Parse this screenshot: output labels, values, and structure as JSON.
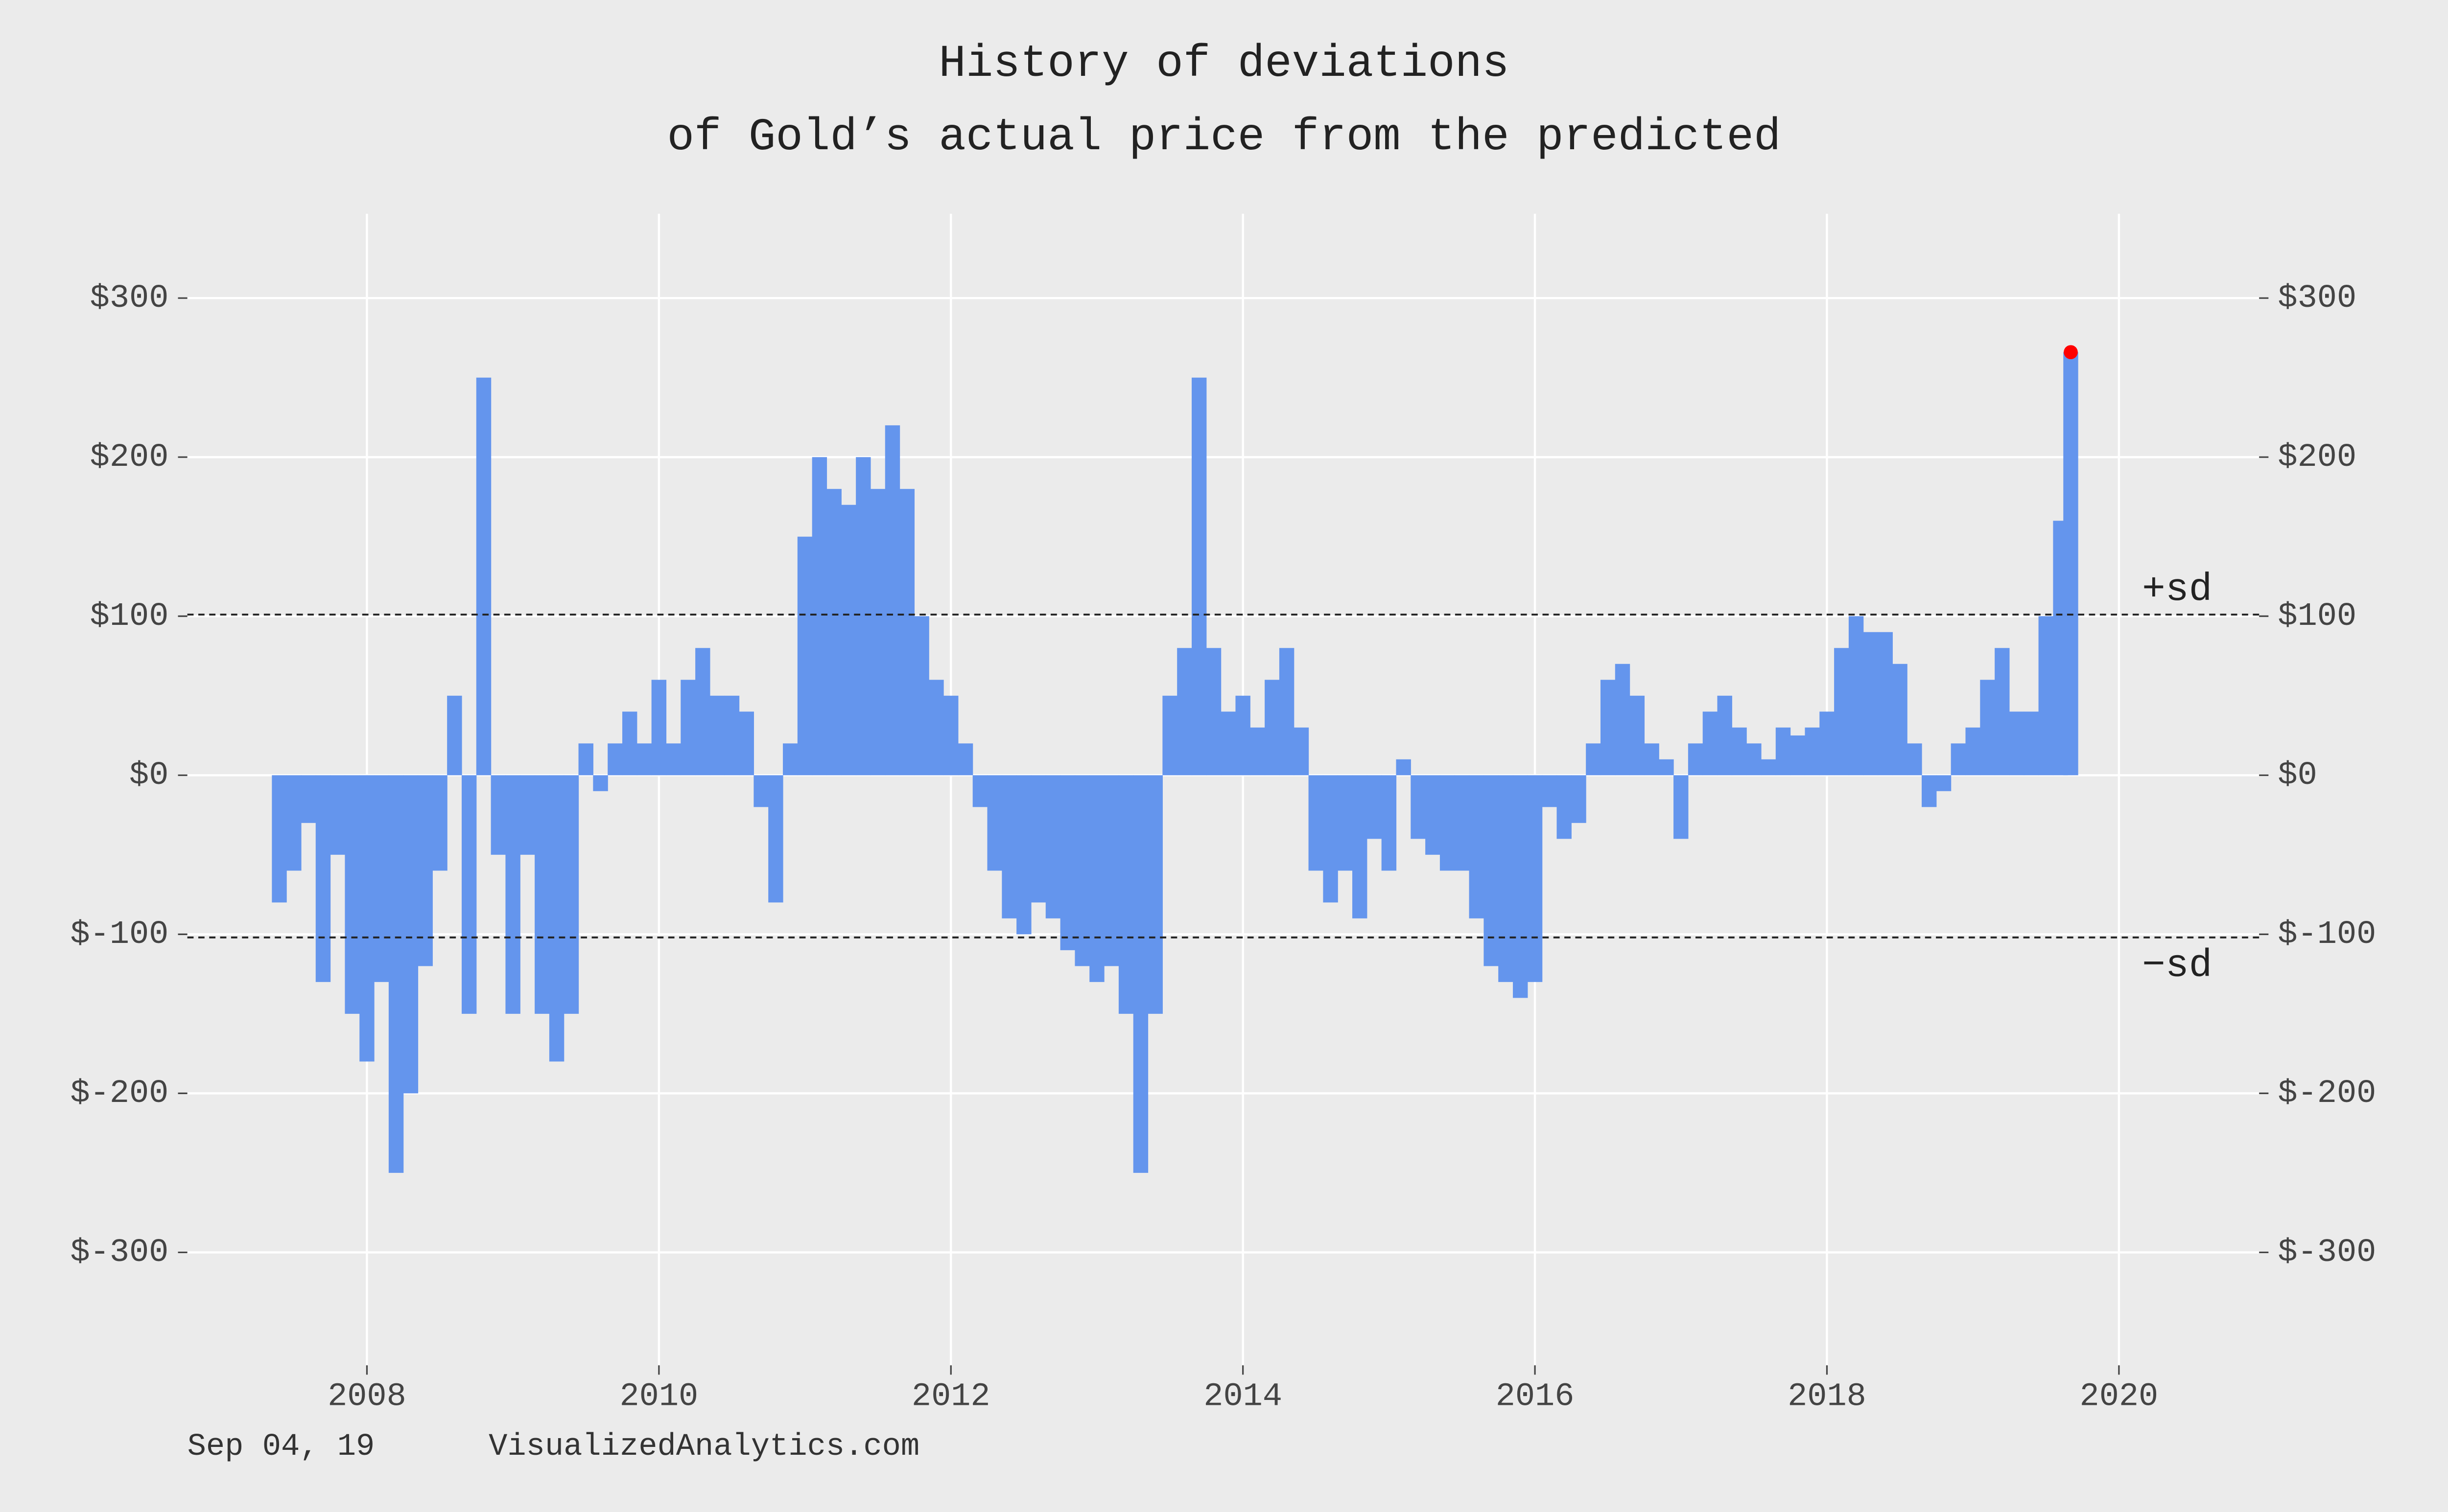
{
  "chart_data": {
    "type": "bar",
    "title": "History of deviations",
    "subtitle": "of Gold’s actual price from the predicted",
    "x": [
      2007.4,
      2007.5,
      2007.6,
      2007.7,
      2007.8,
      2007.9,
      2008.0,
      2008.1,
      2008.2,
      2008.3,
      2008.4,
      2008.5,
      2008.6,
      2008.7,
      2008.8,
      2008.9,
      2009.0,
      2009.1,
      2009.2,
      2009.3,
      2009.4,
      2009.5,
      2009.6,
      2009.7,
      2009.8,
      2009.9,
      2010.0,
      2010.1,
      2010.2,
      2010.3,
      2010.4,
      2010.5,
      2010.6,
      2010.7,
      2010.8,
      2010.9,
      2011.0,
      2011.1,
      2011.2,
      2011.3,
      2011.4,
      2011.5,
      2011.6,
      2011.7,
      2011.8,
      2011.9,
      2012.0,
      2012.1,
      2012.2,
      2012.3,
      2012.4,
      2012.5,
      2012.6,
      2012.7,
      2012.8,
      2012.9,
      2013.0,
      2013.1,
      2013.2,
      2013.3,
      2013.4,
      2013.5,
      2013.6,
      2013.7,
      2013.8,
      2013.9,
      2014.0,
      2014.1,
      2014.2,
      2014.3,
      2014.4,
      2014.5,
      2014.6,
      2014.7,
      2014.8,
      2014.9,
      2015.0,
      2015.1,
      2015.2,
      2015.3,
      2015.4,
      2015.5,
      2015.6,
      2015.7,
      2015.8,
      2015.9,
      2016.0,
      2016.1,
      2016.2,
      2016.3,
      2016.4,
      2016.5,
      2016.6,
      2016.7,
      2016.8,
      2016.9,
      2017.0,
      2017.1,
      2017.2,
      2017.3,
      2017.4,
      2017.5,
      2017.6,
      2017.7,
      2017.8,
      2017.9,
      2018.0,
      2018.1,
      2018.2,
      2018.3,
      2018.4,
      2018.5,
      2018.6,
      2018.7,
      2018.8,
      2018.9,
      2019.0,
      2019.1,
      2019.2,
      2019.3,
      2019.4,
      2019.5,
      2019.6,
      2019.67
    ],
    "series": [
      {
        "color": "#6495ed",
        "values": [
          -80,
          -60,
          -30,
          -130,
          -50,
          -150,
          -180,
          -130,
          -250,
          -200,
          -120,
          -60,
          50,
          -150,
          250,
          -50,
          -150,
          -50,
          -150,
          -180,
          -150,
          20,
          -10,
          20,
          40,
          20,
          60,
          20,
          60,
          80,
          50,
          50,
          40,
          -20,
          -80,
          20,
          150,
          200,
          180,
          170,
          200,
          180,
          220,
          180,
          100,
          60,
          50,
          20,
          -20,
          -60,
          -90,
          -100,
          -80,
          -90,
          -110,
          -120,
          -130,
          -120,
          -150,
          -250,
          -150,
          50,
          80,
          250,
          80,
          40,
          50,
          30,
          60,
          80,
          30,
          -60,
          -80,
          -60,
          -90,
          -40,
          -60,
          10,
          -40,
          -50,
          -60,
          -60,
          -90,
          -120,
          -130,
          -140,
          -130,
          -20,
          -40,
          -30,
          20,
          60,
          70,
          50,
          20,
          10,
          -40,
          20,
          40,
          50,
          30,
          20,
          10,
          30,
          25,
          30,
          40,
          80,
          100,
          90,
          90,
          70,
          20,
          -20,
          -10,
          20,
          30,
          60,
          80,
          40,
          40,
          100,
          160,
          266
        ]
      }
    ],
    "last_point_color": "#ff0000",
    "reference_lines": [
      {
        "value": 101,
        "label": "+sd"
      },
      {
        "value": -102,
        "label": "−sd"
      }
    ],
    "xlim": [
      2006.77,
      2020.96
    ],
    "xticks": [
      2008,
      2010,
      2012,
      2014,
      2016,
      2018,
      2020
    ],
    "ylim": [
      -371,
      353
    ],
    "yticks": [
      {
        "value": -300,
        "label": "$-300"
      },
      {
        "value": -200,
        "label": "$-200"
      },
      {
        "value": -100,
        "label": "$-100"
      },
      {
        "value": 0,
        "label": "$0"
      },
      {
        "value": 100,
        "label": "$100"
      },
      {
        "value": 200,
        "label": "$200"
      },
      {
        "value": 300,
        "label": "$300"
      }
    ],
    "y2lim": [
      -371,
      353
    ],
    "y2ticks": [
      {
        "value": -300,
        "label": "$-300"
      },
      {
        "value": -200,
        "label": "$-200"
      },
      {
        "value": -100,
        "label": "$-100"
      },
      {
        "value": 0,
        "label": "$0"
      },
      {
        "value": 100,
        "label": "$100"
      },
      {
        "value": 200,
        "label": "$200"
      },
      {
        "value": 300,
        "label": "$300"
      }
    ],
    "grid": true,
    "footer": {
      "date": "Sep 04, 19",
      "source": "VisualizedAnalytics.com"
    }
  }
}
